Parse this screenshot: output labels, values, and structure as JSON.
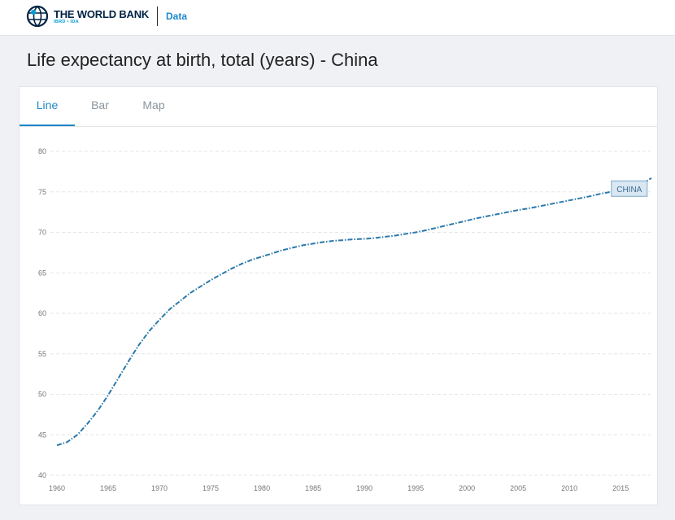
{
  "header": {
    "brand": "THE WORLD BANK",
    "brand_sub": "IBRD • IDA",
    "data_link": "Data"
  },
  "page": {
    "title": "Life expectancy at birth, total (years) - China"
  },
  "tabs": [
    {
      "label": "Line",
      "active": true
    },
    {
      "label": "Bar",
      "active": false
    },
    {
      "label": "Map",
      "active": false
    }
  ],
  "colors": {
    "accent": "#1e88c9",
    "series": "#2b79aa",
    "brand": "#002244"
  },
  "chart_data": {
    "type": "line",
    "title": "",
    "xlabel": "",
    "ylabel": "",
    "ylim": [
      40,
      80
    ],
    "xlim": [
      1960,
      2018
    ],
    "yticks": [
      40,
      45,
      50,
      55,
      60,
      65,
      70,
      75,
      80
    ],
    "xticks": [
      1960,
      1965,
      1970,
      1975,
      1980,
      1985,
      1990,
      1995,
      2000,
      2005,
      2010,
      2015
    ],
    "grid": true,
    "series": [
      {
        "name": "CHINA",
        "x": [
          1960,
          1961,
          1962,
          1963,
          1964,
          1965,
          1966,
          1967,
          1968,
          1969,
          1970,
          1971,
          1972,
          1973,
          1974,
          1975,
          1976,
          1977,
          1978,
          1979,
          1980,
          1981,
          1982,
          1983,
          1984,
          1985,
          1986,
          1987,
          1988,
          1989,
          1990,
          1991,
          1992,
          1993,
          1994,
          1995,
          1996,
          1997,
          1998,
          1999,
          2000,
          2001,
          2002,
          2003,
          2004,
          2005,
          2006,
          2007,
          2008,
          2009,
          2010,
          2011,
          2012,
          2013,
          2014,
          2015,
          2016,
          2017,
          2018
        ],
        "values": [
          43.7,
          44.1,
          45.0,
          46.4,
          48.0,
          49.9,
          52.0,
          54.1,
          56.1,
          57.8,
          59.2,
          60.5,
          61.5,
          62.5,
          63.3,
          64.1,
          64.8,
          65.5,
          66.1,
          66.6,
          67.0,
          67.4,
          67.8,
          68.1,
          68.4,
          68.6,
          68.8,
          68.95,
          69.05,
          69.15,
          69.2,
          69.3,
          69.45,
          69.6,
          69.8,
          70.0,
          70.25,
          70.55,
          70.85,
          71.15,
          71.45,
          71.75,
          72.0,
          72.25,
          72.5,
          72.75,
          72.95,
          73.2,
          73.45,
          73.7,
          73.95,
          74.2,
          74.45,
          74.75,
          75.0,
          75.3,
          75.6,
          75.9,
          76.7
        ]
      }
    ]
  }
}
